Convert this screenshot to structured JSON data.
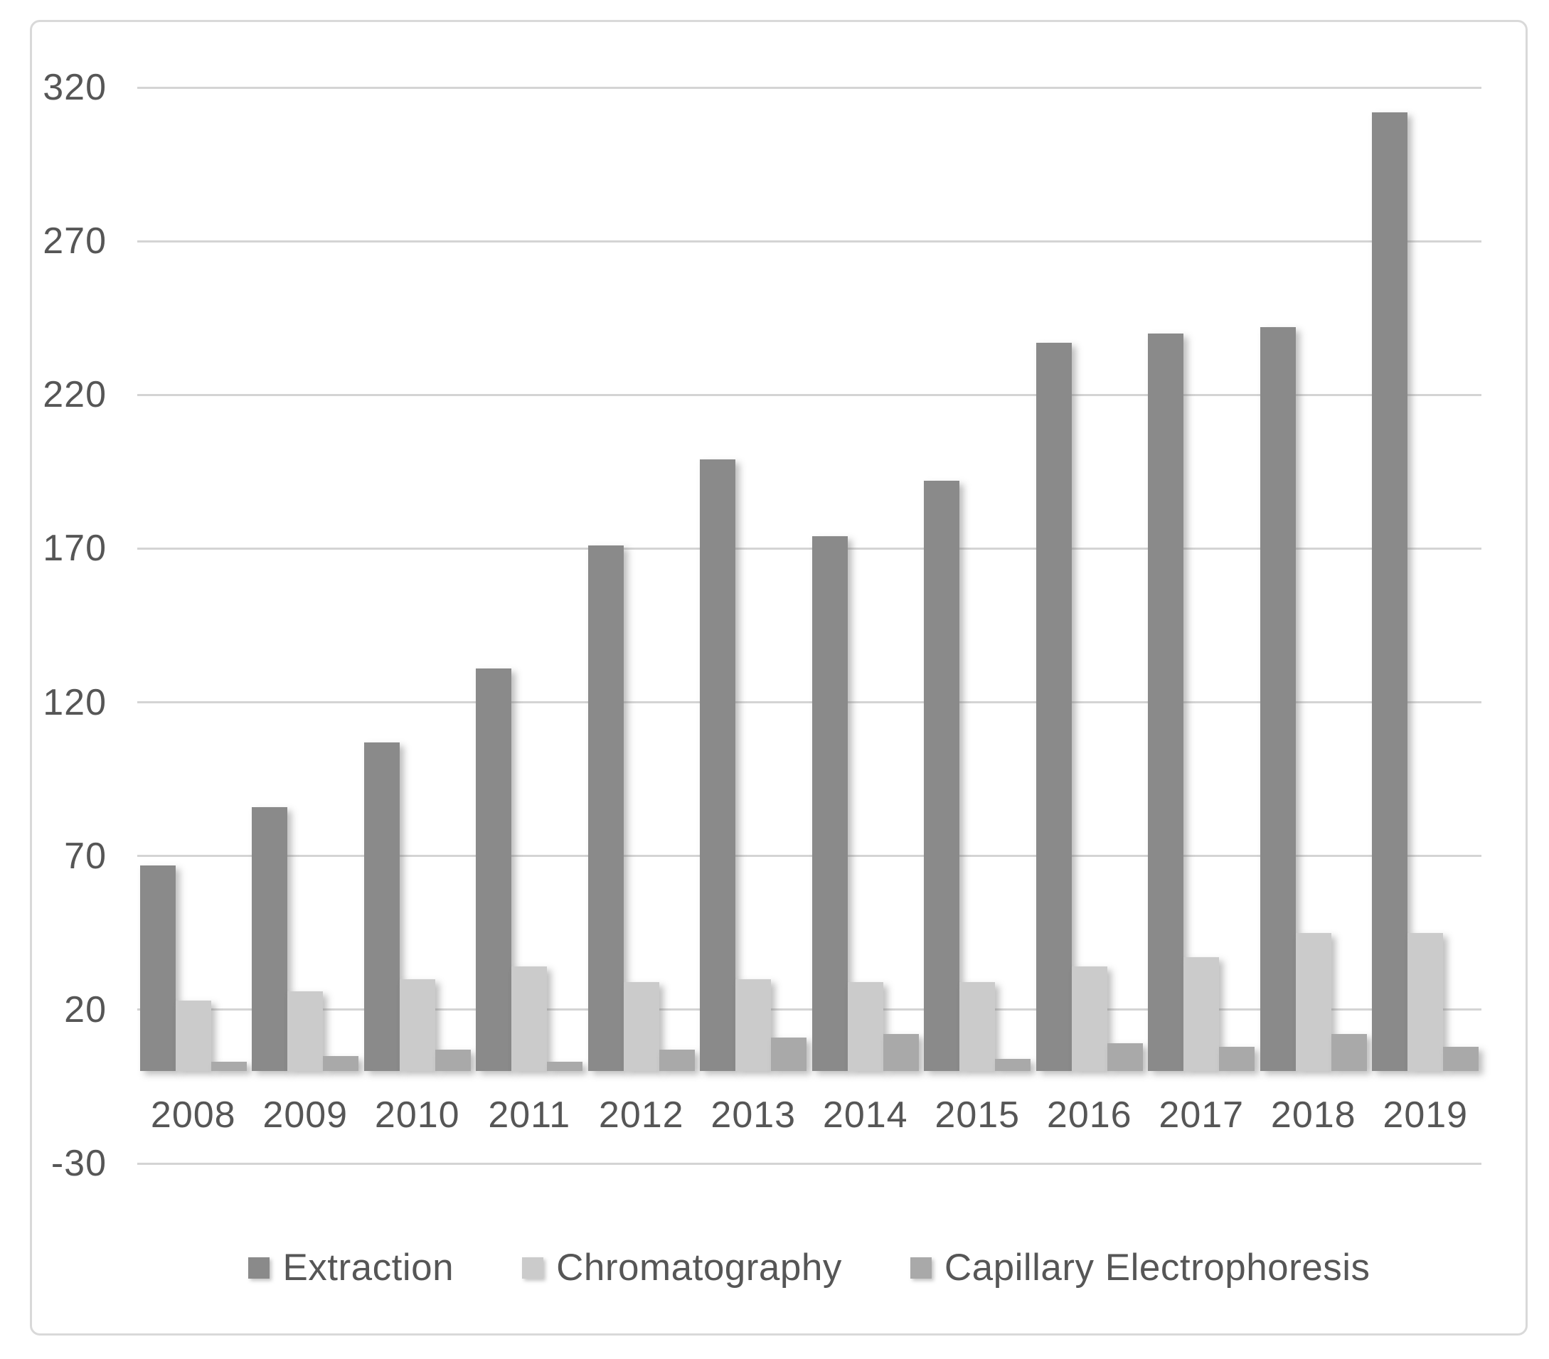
{
  "chart_data": {
    "type": "bar",
    "title": "",
    "xlabel": "",
    "ylabel": "",
    "categories": [
      "2008",
      "2009",
      "2010",
      "2011",
      "2012",
      "2013",
      "2014",
      "2015",
      "2016",
      "2017",
      "2018",
      "2019"
    ],
    "series": [
      {
        "name": "Extraction",
        "color": "#8a8a8a",
        "values": [
          67,
          86,
          107,
          131,
          171,
          199,
          174,
          192,
          237,
          240,
          242,
          312
        ]
      },
      {
        "name": "Chromatography",
        "color": "#cbcbcb",
        "values": [
          23,
          26,
          30,
          34,
          29,
          30,
          29,
          29,
          34,
          37,
          45,
          45
        ]
      },
      {
        "name": "Capillary Electrophoresis",
        "color": "#a9a9a9",
        "values": [
          3,
          5,
          7,
          3,
          7,
          11,
          12,
          4,
          9,
          8,
          12,
          8
        ]
      }
    ],
    "y_axis": {
      "min": -30,
      "max": 320,
      "tick_step": 50,
      "ticks": [
        320,
        270,
        220,
        170,
        120,
        70,
        20,
        -30
      ]
    },
    "grid": true,
    "legend_position": "bottom",
    "colors": {
      "background": "#ffffff",
      "gridline": "#d4d4d4",
      "frame_border": "#d9d9d9",
      "label_text": "#565656"
    }
  }
}
